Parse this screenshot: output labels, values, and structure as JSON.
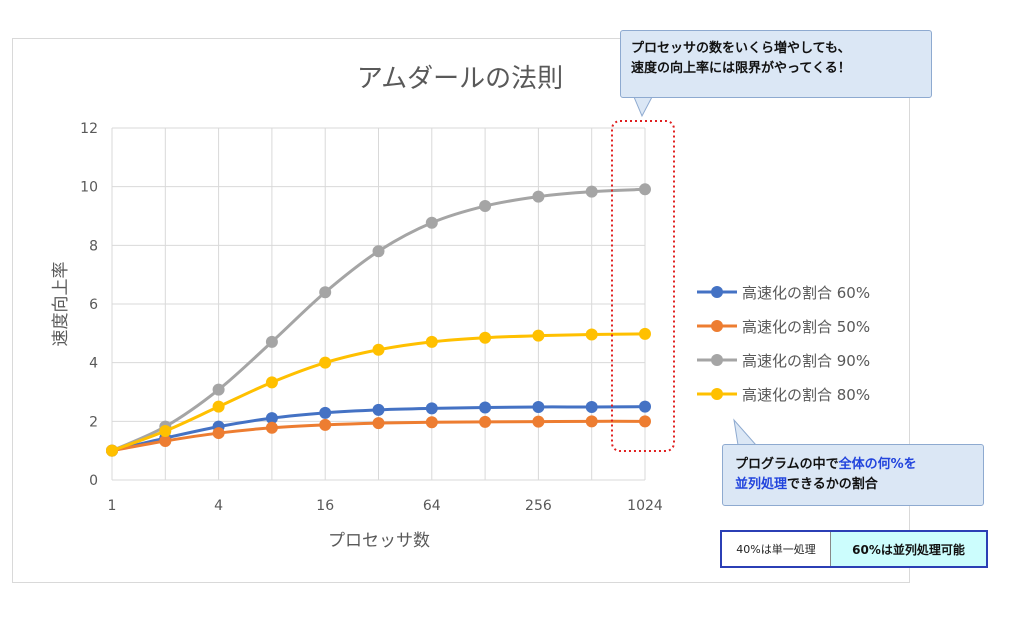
{
  "chart_data": {
    "type": "line",
    "title": "アムダールの法則",
    "xlabel": "プロセッサ数",
    "ylabel": "速度向上率",
    "x_scale": "log2",
    "x_ticks": [
      "1",
      "4",
      "16",
      "64",
      "256",
      "1024"
    ],
    "x": [
      1,
      2,
      4,
      8,
      16,
      32,
      64,
      128,
      256,
      512,
      1024
    ],
    "ylim": [
      0,
      12
    ],
    "y_ticks": [
      0,
      2,
      4,
      6,
      8,
      10,
      12
    ],
    "grid": true,
    "legend_position": "right",
    "series": [
      {
        "name": "高速化の割合 60%",
        "color": "#4472c4",
        "values": [
          1,
          1.43,
          1.82,
          2.11,
          2.29,
          2.39,
          2.44,
          2.47,
          2.49,
          2.49,
          2.5
        ]
      },
      {
        "name": "高速化の割合 50%",
        "color": "#ed7d31",
        "values": [
          1,
          1.33,
          1.6,
          1.78,
          1.88,
          1.94,
          1.97,
          1.98,
          1.99,
          2.0,
          2.0
        ]
      },
      {
        "name": "高速化の割合 90%",
        "color": "#a5a5a5",
        "values": [
          1,
          1.82,
          3.08,
          4.71,
          6.4,
          7.8,
          8.77,
          9.34,
          9.66,
          9.83,
          9.91
        ]
      },
      {
        "name": "高速化の割合 80%",
        "color": "#ffc000",
        "values": [
          1,
          1.67,
          2.5,
          3.33,
          4.0,
          4.44,
          4.71,
          4.85,
          4.92,
          4.96,
          4.98
        ]
      }
    ]
  },
  "callouts": {
    "top_line1": "プロセッサの数をいくら増やしても、",
    "top_line2": "速度の向上率には限界がやってくる！",
    "bottom_pre": "プログラムの中で",
    "bottom_hl1": "全体の何%を",
    "bottom_hl2": "並列処理",
    "bottom_post": "できるかの割合"
  },
  "ratio": {
    "serial": "40%は単一処理",
    "parallel": "60%は並列処理可能"
  },
  "colors": {
    "highlight_box": "#e02020",
    "callout_bg": "#dbe7f5",
    "ratio_bg": "#ccfdfd"
  }
}
